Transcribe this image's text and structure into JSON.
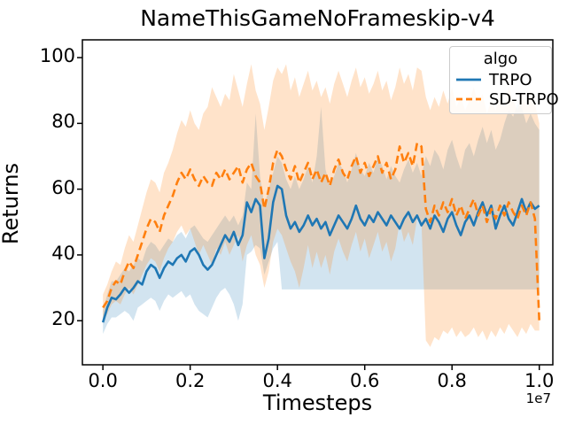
{
  "figure": {
    "title": "NameThisGameNoFrameskip-v4"
  },
  "legend": {
    "title": "algo",
    "entries": [
      {
        "label": "TRPO",
        "color": "#1f77b4",
        "style": "solid"
      },
      {
        "label": "SD-TRPO",
        "color": "#ff7f0e",
        "style": "dashed"
      }
    ]
  },
  "chart_data": {
    "type": "line",
    "title": "NameThisGameNoFrameskip-v4",
    "xlabel": "Timesteps",
    "ylabel": "Returns",
    "x_offset_label": "1e7",
    "x_unit_scale": 10000000,
    "xlim": [
      -0.047,
      1.031
    ],
    "ylim": [
      6.6,
      105.4
    ],
    "grid": false,
    "legend_position": "upper right",
    "xticks": [
      0.0,
      0.2,
      0.4,
      0.6,
      0.8,
      1.0
    ],
    "xtick_labels": [
      "0.0",
      "0.2",
      "0.4",
      "0.6",
      "0.8",
      "1.0"
    ],
    "yticks": [
      20,
      40,
      60,
      80,
      100
    ],
    "ytick_labels": [
      "20",
      "40",
      "60",
      "80",
      "100"
    ],
    "x": [
      0.0,
      0.01,
      0.02,
      0.03,
      0.04,
      0.05,
      0.06,
      0.07,
      0.08,
      0.09,
      0.1,
      0.11,
      0.12,
      0.13,
      0.14,
      0.15,
      0.16,
      0.17,
      0.18,
      0.19,
      0.2,
      0.21,
      0.22,
      0.23,
      0.24,
      0.25,
      0.26,
      0.27,
      0.28,
      0.29,
      0.3,
      0.31,
      0.32,
      0.33,
      0.34,
      0.35,
      0.36,
      0.37,
      0.38,
      0.39,
      0.4,
      0.41,
      0.42,
      0.43,
      0.44,
      0.45,
      0.46,
      0.47,
      0.48,
      0.49,
      0.5,
      0.51,
      0.52,
      0.53,
      0.54,
      0.55,
      0.56,
      0.57,
      0.58,
      0.59,
      0.6,
      0.61,
      0.62,
      0.63,
      0.64,
      0.65,
      0.66,
      0.67,
      0.68,
      0.69,
      0.7,
      0.71,
      0.72,
      0.73,
      0.74,
      0.75,
      0.76,
      0.77,
      0.78,
      0.79,
      0.8,
      0.81,
      0.82,
      0.83,
      0.84,
      0.85,
      0.86,
      0.87,
      0.88,
      0.89,
      0.9,
      0.91,
      0.92,
      0.93,
      0.94,
      0.95,
      0.96,
      0.97,
      0.98,
      0.99,
      1.0
    ],
    "series": [
      {
        "name": "TRPO",
        "color": "#1f77b4",
        "style": "solid",
        "band_alpha": 0.2,
        "values": [
          19.5,
          24,
          27,
          26.5,
          28,
          30,
          28.5,
          30,
          32,
          31,
          35,
          37,
          36,
          33,
          36,
          38,
          37,
          39,
          40,
          38,
          41,
          42,
          40,
          37,
          35.5,
          37,
          40,
          43,
          46,
          44,
          47,
          43,
          46,
          56,
          53,
          57,
          55,
          39,
          45,
          56,
          61,
          60,
          52,
          48,
          50,
          47,
          49,
          52,
          49,
          51,
          48,
          50,
          46,
          49,
          52,
          50,
          48,
          51,
          55,
          51,
          49,
          52,
          50,
          53,
          51,
          49,
          52,
          50,
          48,
          51,
          53,
          50,
          52,
          49,
          51,
          48,
          52,
          50,
          47,
          51,
          53,
          49,
          46,
          50,
          52,
          49,
          53,
          56,
          52,
          55,
          48,
          52,
          55,
          51,
          49,
          53,
          57,
          53,
          56,
          54,
          55
        ],
        "band_low": [
          16,
          19,
          21,
          21,
          22,
          23,
          22,
          20,
          24,
          25,
          26,
          27,
          26,
          23,
          26,
          28,
          27,
          28,
          29,
          27,
          28,
          25,
          23,
          22,
          21,
          24,
          27,
          29,
          30,
          28,
          25,
          20,
          25,
          40,
          41,
          43,
          42,
          34,
          38,
          42,
          44,
          29.5,
          29.5,
          29.5,
          29.5,
          29.5,
          29.5,
          29.5,
          29.5,
          29.5,
          29.5,
          29.5,
          29.5,
          29.5,
          29.5,
          29.5,
          29.5,
          29.5,
          29.5,
          29.5,
          29.5,
          29.5,
          29.5,
          29.5,
          29.5,
          29.5,
          29.5,
          29.5,
          29.5,
          29.5,
          29.5,
          29.5,
          29.5,
          29.5,
          29.5,
          29.5,
          29.5,
          29.5,
          29.5,
          29.5,
          29.5,
          29.5,
          29.5,
          29.5,
          29.5,
          29.5,
          29.5,
          29.5,
          29.5,
          29.5,
          29.5,
          29.5,
          29.5,
          29.5,
          29.5,
          29.5,
          29.5,
          29.5,
          29.5,
          29.5,
          29.5
        ],
        "band_high": [
          23,
          28,
          32,
          32,
          34,
          36,
          35,
          37,
          39,
          38,
          42,
          44,
          43,
          41,
          43,
          45,
          44,
          46,
          47,
          45,
          48,
          49,
          47,
          45,
          44,
          46,
          48,
          50,
          52,
          50,
          52,
          49,
          52,
          62,
          60,
          83,
          64,
          55,
          60,
          65,
          70,
          68,
          63,
          60,
          64,
          60,
          63,
          67,
          62,
          70,
          85,
          66,
          61,
          64,
          68,
          66,
          62,
          66,
          71,
          66,
          64,
          68,
          65,
          70,
          67,
          63,
          67,
          64,
          62,
          66,
          69,
          65,
          68,
          64,
          70,
          67,
          72,
          70,
          66,
          72,
          75,
          70,
          66,
          72,
          74,
          70,
          75,
          79,
          74,
          78,
          72,
          75,
          80,
          84,
          82,
          86,
          85,
          80,
          83,
          80,
          78
        ]
      },
      {
        "name": "SD-TRPO",
        "color": "#ff7f0e",
        "style": "dashed",
        "band_alpha": 0.22,
        "values": [
          24,
          26,
          30,
          32,
          31,
          35,
          38,
          36,
          40,
          44,
          48,
          51,
          50,
          47,
          52,
          55,
          58,
          62,
          65,
          63,
          66,
          63,
          61,
          64,
          62,
          61,
          65,
          63,
          66,
          63,
          65,
          67,
          62,
          66,
          68,
          64,
          62,
          54,
          60,
          68,
          72,
          70,
          66,
          63,
          67,
          62,
          65,
          68,
          63,
          66,
          62,
          65,
          61,
          66,
          69,
          65,
          63,
          67,
          70,
          65,
          68,
          64,
          67,
          70,
          65,
          68,
          63,
          66,
          73,
          68,
          71,
          67,
          74,
          73,
          54,
          50,
          55,
          52,
          56,
          53,
          57,
          52,
          55,
          51,
          54,
          57,
          52,
          55,
          50,
          54,
          51,
          55,
          52,
          56,
          53,
          51,
          55,
          52,
          56,
          51,
          20
        ],
        "band_low": [
          20,
          22,
          25,
          26,
          25,
          28,
          30,
          28,
          31,
          34,
          37,
          39,
          38,
          35,
          39,
          42,
          44,
          47,
          49,
          46,
          48,
          44,
          40,
          43,
          40,
          37,
          42,
          40,
          44,
          40,
          43,
          46,
          38,
          43,
          46,
          40,
          37,
          30,
          35,
          44,
          48,
          46,
          42,
          38,
          35,
          30,
          36,
          43,
          36,
          41,
          36,
          40,
          34,
          41,
          45,
          41,
          38,
          43,
          47,
          41,
          45,
          39,
          43,
          47,
          41,
          44,
          38,
          42,
          50,
          44,
          47,
          43,
          51,
          50,
          14,
          12,
          15,
          14,
          17,
          16,
          18,
          15,
          17,
          15,
          16,
          18,
          15,
          17,
          14,
          17,
          15,
          18,
          16,
          19,
          17,
          15,
          18,
          16,
          19,
          17,
          17
        ],
        "band_high": [
          28,
          31,
          35,
          38,
          37,
          42,
          46,
          44,
          49,
          54,
          59,
          63,
          62,
          59,
          65,
          68,
          72,
          77,
          81,
          79,
          84,
          80,
          78,
          83,
          85,
          91,
          88,
          85,
          89,
          87,
          95,
          90,
          85,
          92,
          98,
          90,
          86,
          78,
          85,
          93,
          97,
          95,
          98,
          90,
          94,
          88,
          92,
          96,
          90,
          93,
          88,
          91,
          86,
          92,
          96,
          92,
          88,
          93,
          97,
          91,
          94,
          89,
          92,
          96,
          90,
          93,
          87,
          91,
          97,
          92,
          95,
          90,
          97,
          96,
          88,
          84,
          88,
          85,
          90,
          86,
          91,
          85,
          88,
          84,
          87,
          91,
          86,
          89,
          83,
          87,
          84,
          89,
          85,
          91,
          87,
          84,
          89,
          85,
          90,
          86,
          80
        ]
      }
    ]
  }
}
